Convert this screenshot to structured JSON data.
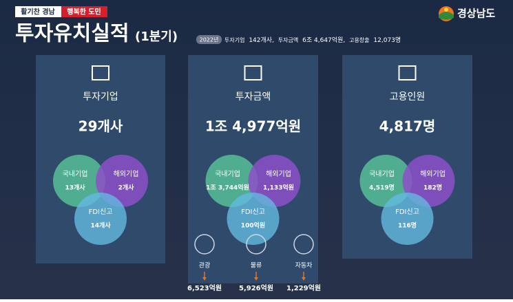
{
  "header": {
    "tag_left": "활기찬 경남",
    "tag_right": "행복한 도민",
    "title": "투자유치실적",
    "title_suffix": "(1분기)",
    "logo": "경상남도",
    "year_badge": "2022년",
    "summary": [
      {
        "label": "투자기업",
        "value": "142개사,"
      },
      {
        "label": "투자금액",
        "value": "6조 4,647억원,"
      },
      {
        "label": "고용창출",
        "value": "12,073명"
      }
    ]
  },
  "cards": [
    {
      "title": "투자기업",
      "total": "29개사",
      "circles": [
        {
          "label": "국내기업",
          "value": "13개사"
        },
        {
          "label": "해외기업",
          "value": "2개사"
        },
        {
          "label": "FDI신고",
          "value": "14개사"
        }
      ]
    },
    {
      "title": "투자금액",
      "total": "1조 4,977억원",
      "circles": [
        {
          "label": "국내기업",
          "value": "1조 3,744억원"
        },
        {
          "label": "해외기업",
          "value": "1,133억원"
        },
        {
          "label": "FDI신고",
          "value": "100억원"
        }
      ]
    },
    {
      "title": "고용인원",
      "total": "4,817명",
      "circles": [
        {
          "label": "국내기업",
          "value": "4,519명"
        },
        {
          "label": "해외기업",
          "value": "182명"
        },
        {
          "label": "FDI신고",
          "value": "116명"
        }
      ]
    }
  ],
  "sectors": [
    {
      "label": "관광",
      "value": "6,523억원"
    },
    {
      "label": "물류",
      "value": "5,926억원"
    },
    {
      "label": "자동차",
      "value": "1,229억원"
    }
  ]
}
